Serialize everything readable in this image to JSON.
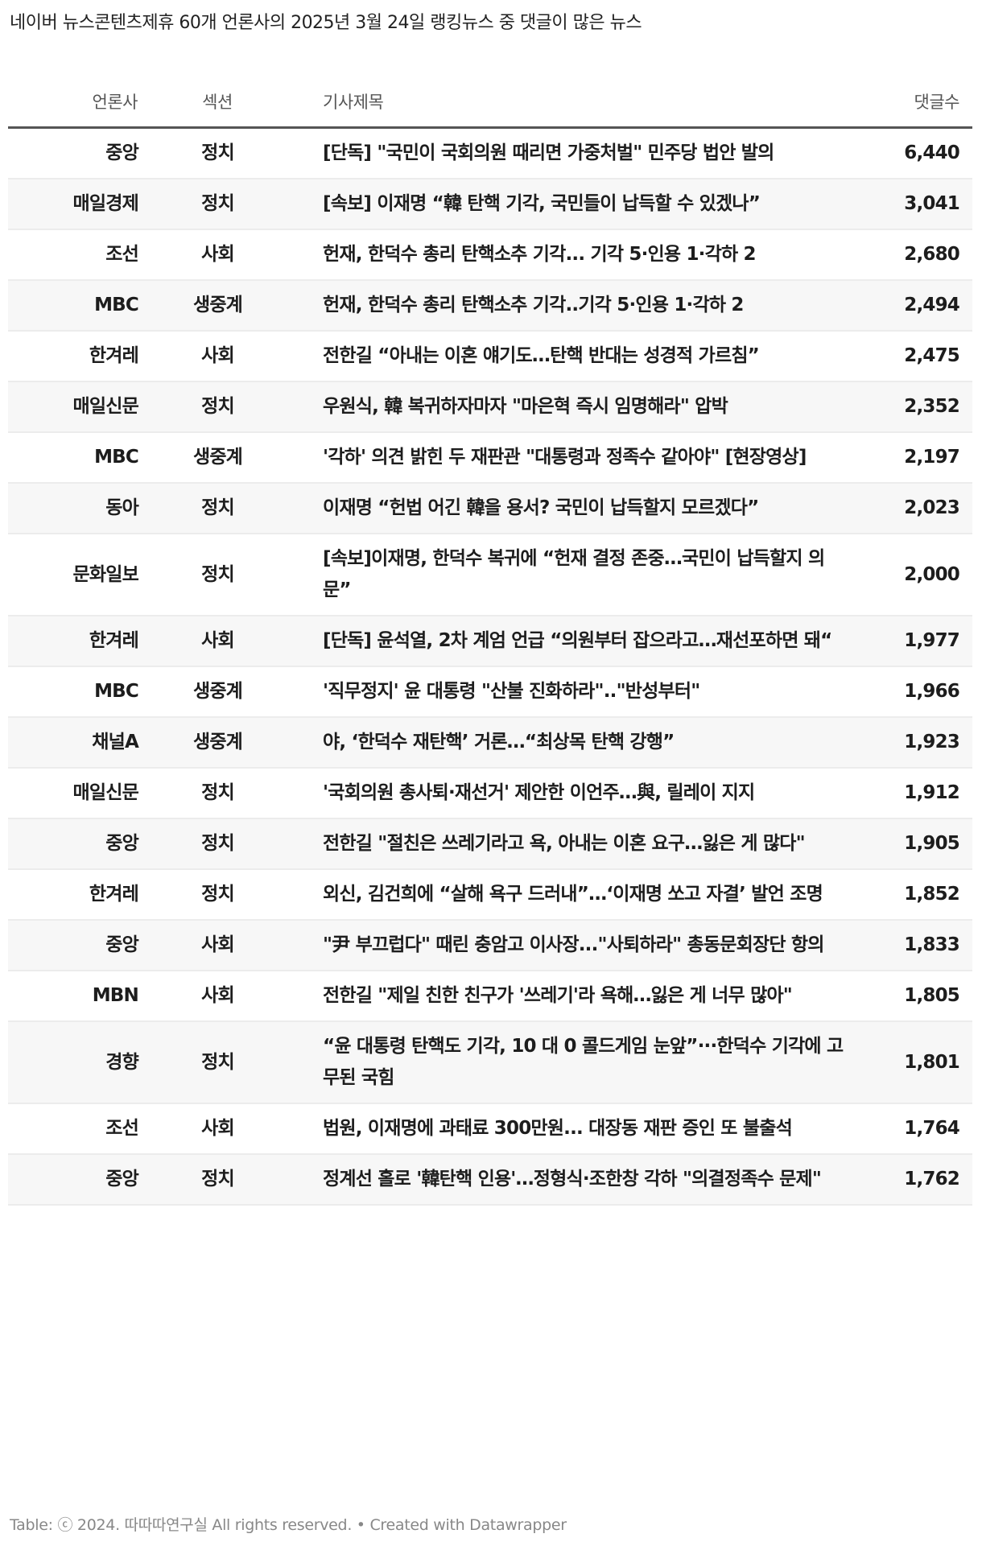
{
  "title": "네이버 뉴스콘텐츠제휴 60개 언론사의 2025년 3월 24일 랭킹뉴스 중 댓글이 많은 뉴스",
  "columns": [
    "언론사",
    "섹션",
    "기사제목",
    "댓글수"
  ],
  "rows": [
    {
      "press": "중앙",
      "section": "정치",
      "headline": "[단독] \"국민이 국회의원 때리면 가중처벌\" 민주당 법안 발의",
      "comments": "6,440"
    },
    {
      "press": "매일경제",
      "section": "정치",
      "headline": "[속보] 이재명 “韓 탄핵 기각, 국민들이 납득할 수 있겠나”",
      "comments": "3,041"
    },
    {
      "press": "조선",
      "section": "사회",
      "headline": "헌재, 한덕수 총리 탄핵소추 기각... 기각 5·인용 1·각하 2",
      "comments": "2,680"
    },
    {
      "press": "MBC",
      "section": "생중계",
      "headline": "헌재, 한덕수 총리 탄핵소추 기각..기각 5·인용 1·각하 2",
      "comments": "2,494"
    },
    {
      "press": "한겨레",
      "section": "사회",
      "headline": "전한길 “아내는 이혼 얘기도…탄핵 반대는 성경적 가르침”",
      "comments": "2,475"
    },
    {
      "press": "매일신문",
      "section": "정치",
      "headline": "우원식, 韓 복귀하자마자 \"마은혁 즉시 임명해라\" 압박",
      "comments": "2,352"
    },
    {
      "press": "MBC",
      "section": "생중계",
      "headline": "'각하' 의견 밝힌 두 재판관 \"대통령과 정족수 같아야\" [현장영상]",
      "comments": "2,197"
    },
    {
      "press": "동아",
      "section": "정치",
      "headline": "이재명 “헌법 어긴 韓을 용서? 국민이 납득할지 모르겠다”",
      "comments": "2,023"
    },
    {
      "press": "문화일보",
      "section": "정치",
      "headline": "[속보]이재명, 한덕수 복귀에 “헌재 결정 존중…국민이 납득할지 의문”",
      "comments": "2,000"
    },
    {
      "press": "한겨레",
      "section": "사회",
      "headline": "[단독] 윤석열, 2차 계엄 언급 “의원부터 잡으라고…재선포하면 돼“",
      "comments": "1,977"
    },
    {
      "press": "MBC",
      "section": "생중계",
      "headline": "'직무정지' 윤 대통령 \"산불 진화하라\"..\"반성부터\"",
      "comments": "1,966"
    },
    {
      "press": "채널A",
      "section": "생중계",
      "headline": "야, ‘한덕수 재탄핵’ 거론…“최상목 탄핵 강행”",
      "comments": "1,923"
    },
    {
      "press": "매일신문",
      "section": "정치",
      "headline": "'국회의원 총사퇴·재선거' 제안한 이언주…與, 릴레이 지지",
      "comments": "1,912"
    },
    {
      "press": "중앙",
      "section": "정치",
      "headline": "전한길 \"절친은 쓰레기라고 욕, 아내는 이혼 요구…잃은 게 많다\"",
      "comments": "1,905"
    },
    {
      "press": "한겨레",
      "section": "정치",
      "headline": "외신, 김건희에 “살해 욕구 드러내”…‘이재명 쏘고 자결’ 발언 조명",
      "comments": "1,852"
    },
    {
      "press": "중앙",
      "section": "사회",
      "headline": "\"尹 부끄럽다\" 때린 충암고 이사장...\"사퇴하라\" 총동문회장단 항의",
      "comments": "1,833"
    },
    {
      "press": "MBN",
      "section": "사회",
      "headline": "전한길 \"제일 친한 친구가 '쓰레기'라 욕해…잃은 게 너무 많아\"",
      "comments": "1,805"
    },
    {
      "press": "경향",
      "section": "정치",
      "headline": "“윤 대통령 탄핵도 기각, 10 대 0 콜드게임 눈앞”···한덕수 기각에 고무된 국힘",
      "comments": "1,801"
    },
    {
      "press": "조선",
      "section": "사회",
      "headline": "법원, 이재명에 과태료 300만원... 대장동 재판 증인 또 불출석",
      "comments": "1,764"
    },
    {
      "press": "중앙",
      "section": "정치",
      "headline": "정계선 홀로 '韓탄핵 인용'…정형식·조한창 각하 \"의결정족수 문제\"",
      "comments": "1,762"
    }
  ],
  "footer": "Table: ⓒ 2024. 따따따연구실 All rights reserved. • Created with Datawrapper",
  "colors": {
    "stripe": "#f7f7f7",
    "header_rule": "#555555",
    "text": "#1d1d1d",
    "footer": "#888888"
  }
}
